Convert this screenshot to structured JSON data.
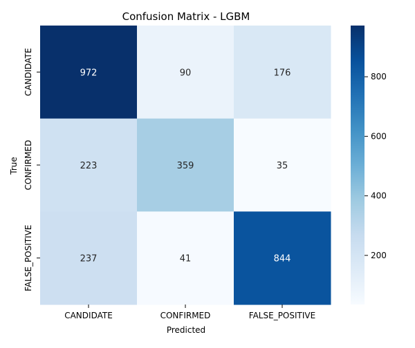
{
  "chart_data": {
    "type": "heatmap",
    "title": "Confusion Matrix - LGBM",
    "xlabel": "Predicted",
    "ylabel": "True",
    "x_categories": [
      "CANDIDATE",
      "CONFIRMED",
      "FALSE_POSITIVE"
    ],
    "y_categories": [
      "CANDIDATE",
      "CONFIRMED",
      "FALSE_POSITIVE"
    ],
    "values": [
      [
        972,
        90,
        176
      ],
      [
        223,
        359,
        35
      ],
      [
        237,
        41,
        844
      ]
    ],
    "colorbar": {
      "range": [
        35,
        972
      ],
      "ticks": [
        200,
        400,
        600,
        800
      ],
      "colormap": "Blues"
    },
    "grid": false
  }
}
